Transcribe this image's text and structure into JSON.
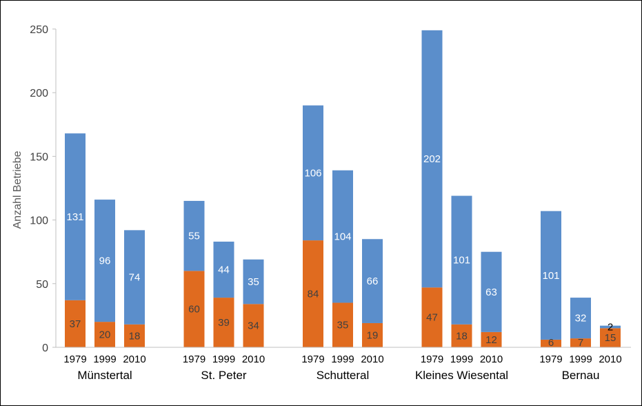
{
  "chart_data": {
    "type": "bar",
    "stacked": true,
    "ylabel": "Anzahl Betriebe",
    "xlabel": "",
    "ylim": [
      0,
      250
    ],
    "yticks": [
      0,
      50,
      100,
      150,
      200,
      250
    ],
    "grid": false,
    "legend": "none",
    "colors": {
      "bottom": "#E06B1F",
      "top": "#5B8ECB",
      "label_on_bottom": "#404040",
      "label_on_top": "#ffffff"
    },
    "groups": [
      {
        "name": "Münstertal",
        "years": [
          "1979",
          "1999",
          "2010"
        ],
        "bottom": [
          37,
          20,
          18
        ],
        "top": [
          131,
          96,
          74
        ]
      },
      {
        "name": "St. Peter",
        "years": [
          "1979",
          "1999",
          "2010"
        ],
        "bottom": [
          60,
          39,
          34
        ],
        "top": [
          55,
          44,
          35
        ]
      },
      {
        "name": "Schutteral",
        "years": [
          "1979",
          "1999",
          "2010"
        ],
        "bottom": [
          84,
          35,
          19
        ],
        "top": [
          106,
          104,
          66
        ]
      },
      {
        "name": "Kleines Wiesental",
        "years": [
          "1979",
          "1999",
          "2010"
        ],
        "bottom": [
          47,
          18,
          12
        ],
        "top": [
          202,
          101,
          63
        ]
      },
      {
        "name": "Bernau",
        "years": [
          "1979",
          "1999",
          "2010"
        ],
        "bottom": [
          6,
          7,
          15
        ],
        "top": [
          101,
          32,
          2
        ]
      }
    ]
  }
}
